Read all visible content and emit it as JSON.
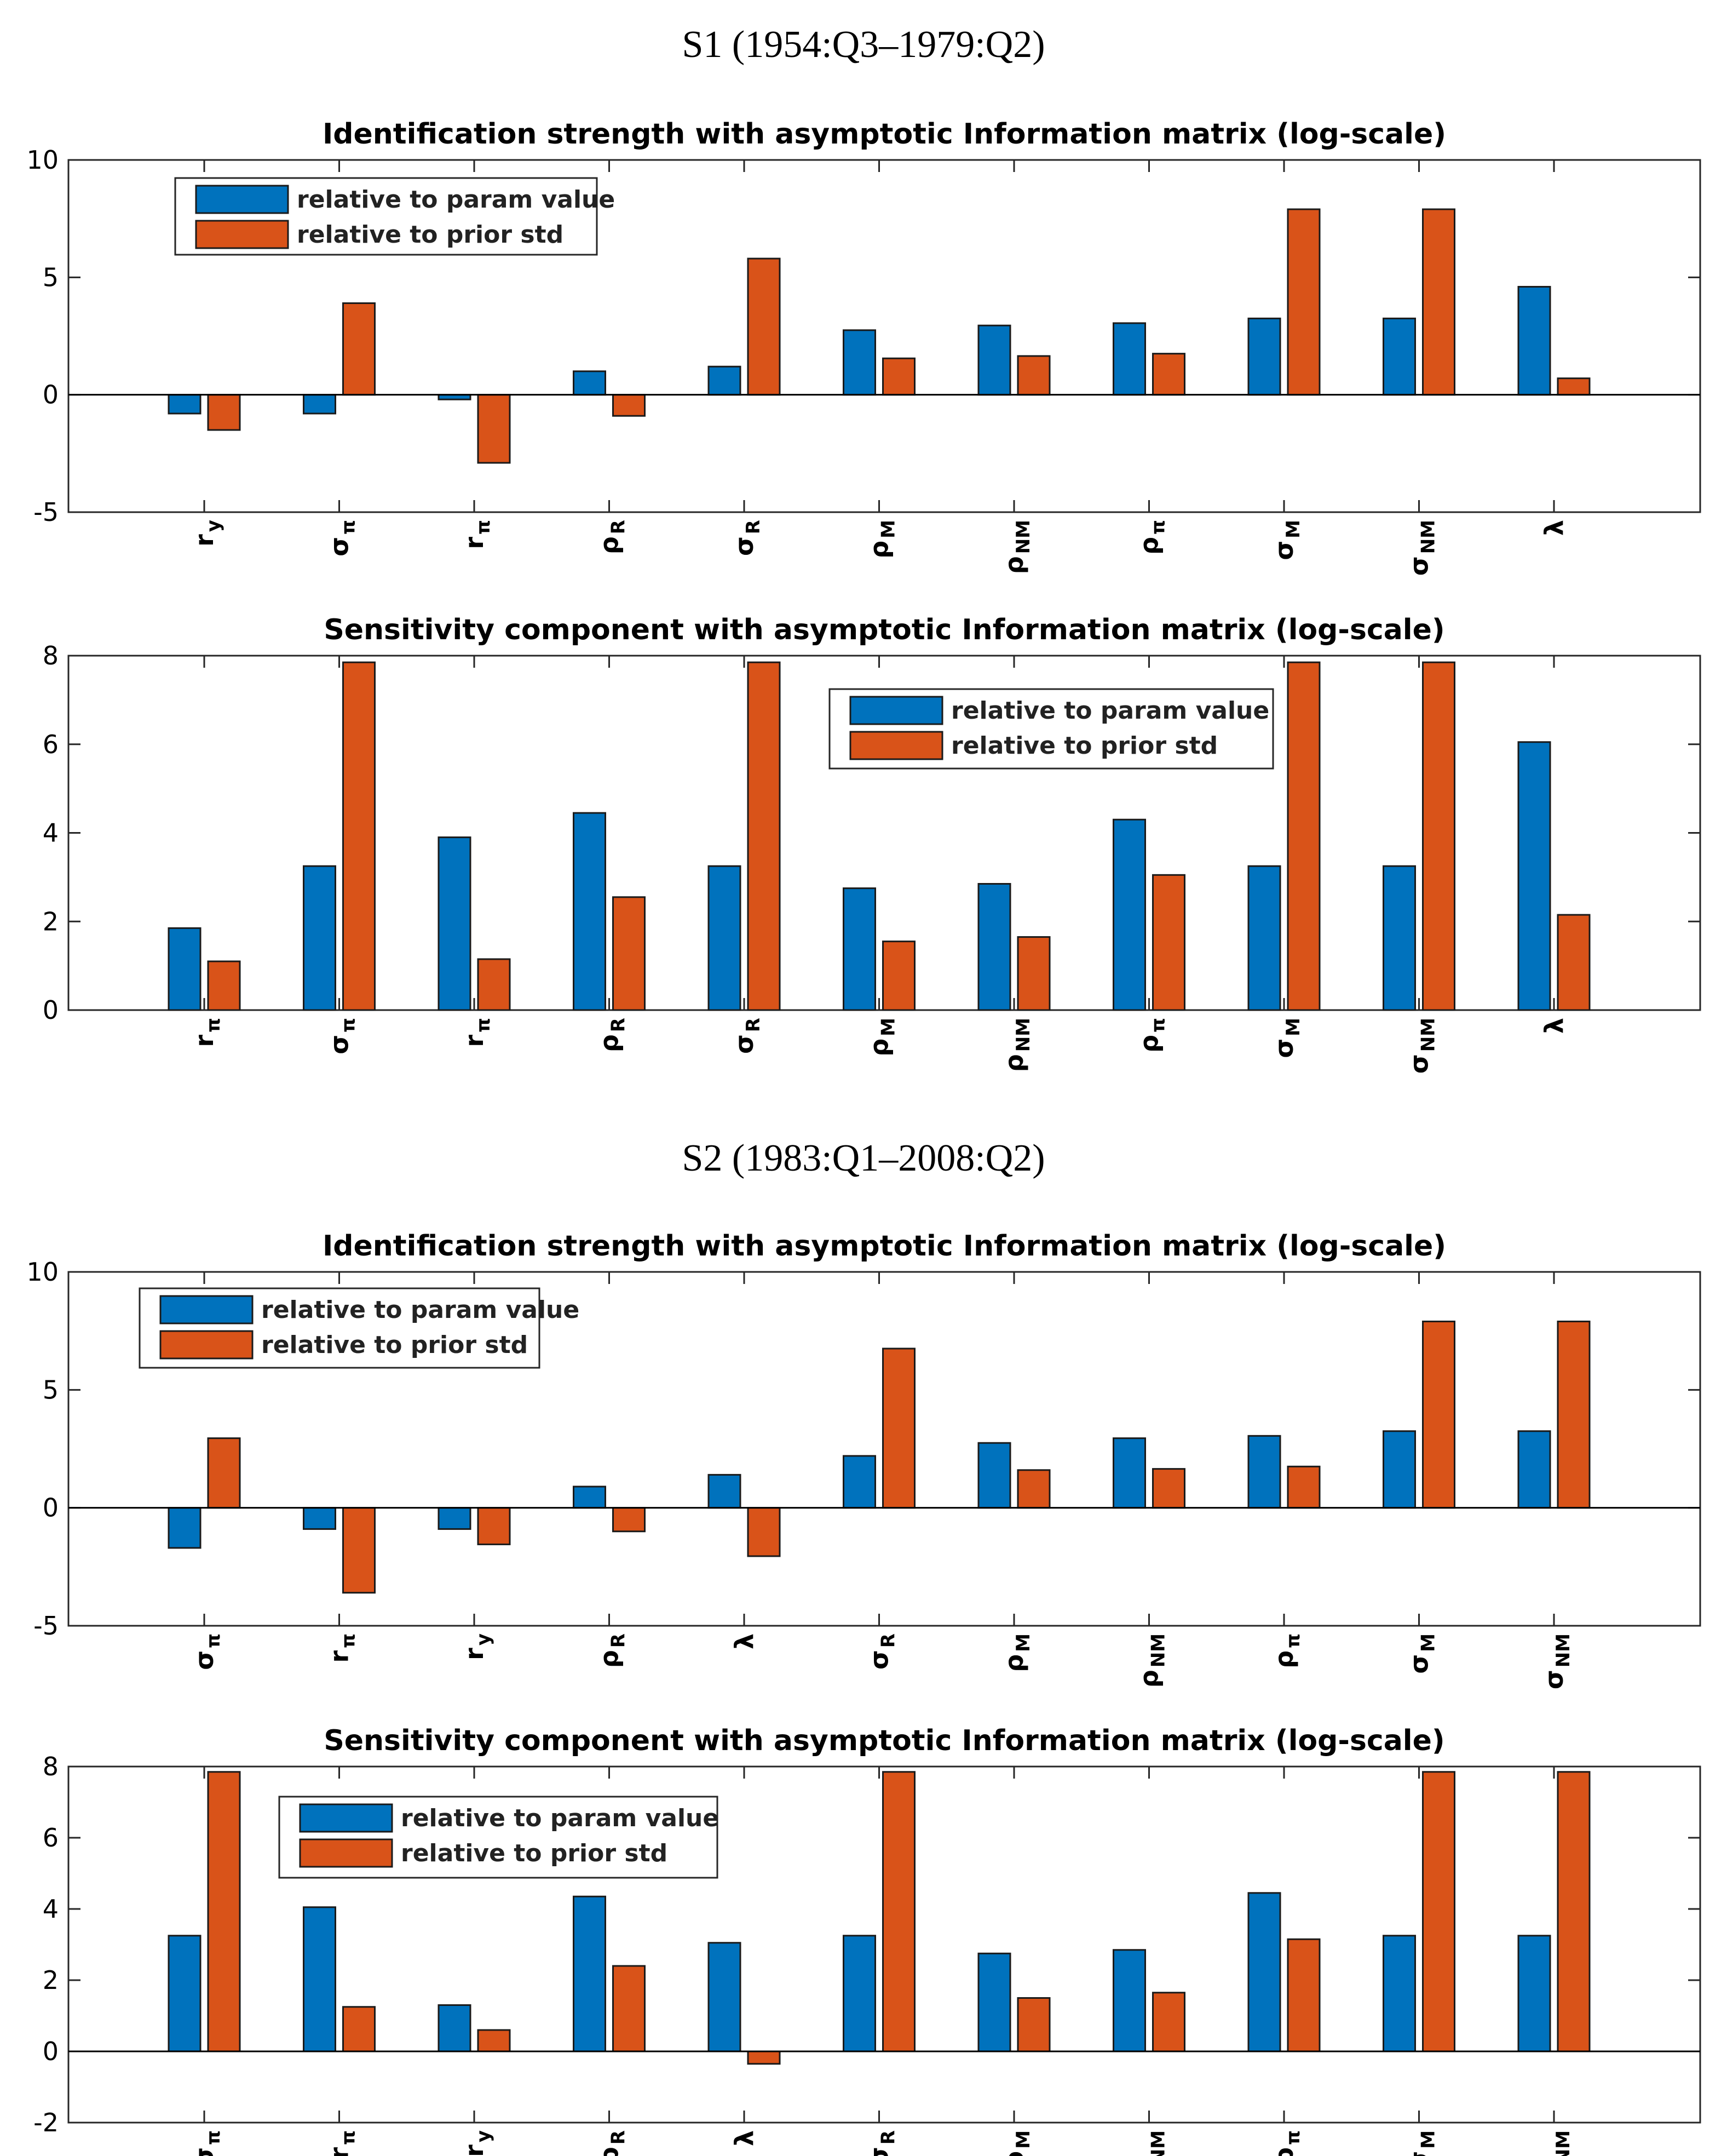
{
  "sections": [
    {
      "label": "S1 (1954:Q3–1979:Q2)"
    },
    {
      "label": "S2 (1983:Q1–2008:Q2)"
    }
  ],
  "colors": {
    "series1": "#0072BD",
    "series2": "#D95319"
  },
  "chart_data": [
    {
      "type": "bar",
      "title": "Identification strength with asymptotic Information matrix (log-scale)",
      "legend_position": "top-left",
      "ylim": [
        -5,
        10
      ],
      "yticks": [
        -5,
        0,
        5,
        10
      ],
      "categories": [
        {
          "base": "r",
          "sub": "y"
        },
        {
          "base": "σ",
          "sub": "π"
        },
        {
          "base": "r",
          "sub": "π"
        },
        {
          "base": "ρ",
          "sub": "R"
        },
        {
          "base": "σ",
          "sub": "R"
        },
        {
          "base": "ρ",
          "sub": "M"
        },
        {
          "base": "ρ",
          "sub": "NM"
        },
        {
          "base": "ρ",
          "sub": "π"
        },
        {
          "base": "σ",
          "sub": "M"
        },
        {
          "base": "σ",
          "sub": "NM"
        },
        {
          "base": "λ",
          "sub": ""
        }
      ],
      "series": [
        {
          "name": "relative to param value",
          "values": [
            -0.8,
            -0.8,
            -0.2,
            1.0,
            1.2,
            2.75,
            2.95,
            3.05,
            3.25,
            3.25,
            4.6
          ]
        },
        {
          "name": "relative to prior std",
          "values": [
            -1.5,
            3.9,
            -2.9,
            -0.9,
            5.8,
            1.55,
            1.65,
            1.75,
            7.9,
            7.9,
            0.7
          ]
        }
      ]
    },
    {
      "type": "bar",
      "title": "Sensitivity component with asymptotic Information matrix (log-scale)",
      "legend_position": "top-right",
      "ylim": [
        0,
        8
      ],
      "yticks": [
        0,
        2,
        4,
        6,
        8
      ],
      "categories": [
        {
          "base": "r",
          "sub": "π"
        },
        {
          "base": "σ",
          "sub": "π"
        },
        {
          "base": "r",
          "sub": "π"
        },
        {
          "base": "ρ",
          "sub": "R"
        },
        {
          "base": "σ",
          "sub": "R"
        },
        {
          "base": "ρ",
          "sub": "M"
        },
        {
          "base": "ρ",
          "sub": "NM"
        },
        {
          "base": "ρ",
          "sub": "π"
        },
        {
          "base": "σ",
          "sub": "M"
        },
        {
          "base": "σ",
          "sub": "NM"
        },
        {
          "base": "λ",
          "sub": ""
        }
      ],
      "series": [
        {
          "name": "relative to param value",
          "values": [
            1.85,
            3.25,
            3.9,
            4.45,
            3.25,
            2.75,
            2.85,
            4.3,
            3.25,
            3.25,
            6.05
          ]
        },
        {
          "name": "relative to prior std",
          "values": [
            1.1,
            7.85,
            1.15,
            2.55,
            7.85,
            1.55,
            1.65,
            3.05,
            7.85,
            7.85,
            2.15
          ]
        }
      ]
    },
    {
      "type": "bar",
      "title": "Identification strength with asymptotic Information matrix (log-scale)",
      "legend_position": "top-left",
      "ylim": [
        -5,
        10
      ],
      "yticks": [
        -5,
        0,
        5,
        10
      ],
      "categories": [
        {
          "base": "σ",
          "sub": "π"
        },
        {
          "base": "r",
          "sub": "π"
        },
        {
          "base": "r",
          "sub": "y"
        },
        {
          "base": "ρ",
          "sub": "R"
        },
        {
          "base": "λ",
          "sub": ""
        },
        {
          "base": "σ",
          "sub": "R"
        },
        {
          "base": "ρ",
          "sub": "M"
        },
        {
          "base": "ρ",
          "sub": "NM"
        },
        {
          "base": "ρ",
          "sub": "π"
        },
        {
          "base": "σ",
          "sub": "M"
        },
        {
          "base": "σ",
          "sub": "NM"
        }
      ],
      "series": [
        {
          "name": "relative to param value",
          "values": [
            -1.7,
            -0.9,
            -0.9,
            0.9,
            1.4,
            2.2,
            2.75,
            2.95,
            3.05,
            3.25,
            3.25
          ]
        },
        {
          "name": "relative to prior std",
          "values": [
            2.95,
            -3.6,
            -1.55,
            -1.0,
            -2.05,
            6.75,
            1.6,
            1.65,
            1.75,
            7.9,
            7.9
          ]
        }
      ]
    },
    {
      "type": "bar",
      "title": "Sensitivity component with asymptotic Information matrix (log-scale)",
      "legend_position": "top-left",
      "ylim": [
        -2,
        8
      ],
      "yticks": [
        -2,
        0,
        2,
        4,
        6,
        8
      ],
      "categories": [
        {
          "base": "σ",
          "sub": "π"
        },
        {
          "base": "r",
          "sub": "π"
        },
        {
          "base": "r",
          "sub": "y"
        },
        {
          "base": "ρ",
          "sub": "R"
        },
        {
          "base": "λ",
          "sub": ""
        },
        {
          "base": "σ",
          "sub": "R"
        },
        {
          "base": "ρ",
          "sub": "M"
        },
        {
          "base": "ρ",
          "sub": "NM"
        },
        {
          "base": "ρ",
          "sub": "π"
        },
        {
          "base": "σ",
          "sub": "M"
        },
        {
          "base": "σ",
          "sub": "NM"
        }
      ],
      "series": [
        {
          "name": "relative to param value",
          "values": [
            3.25,
            4.05,
            1.3,
            4.35,
            3.05,
            3.25,
            2.75,
            2.85,
            4.45,
            3.25,
            3.25
          ]
        },
        {
          "name": "relative to prior std",
          "values": [
            7.85,
            1.25,
            0.6,
            2.4,
            -0.35,
            7.85,
            1.5,
            1.65,
            3.15,
            7.85,
            7.85
          ]
        }
      ]
    }
  ]
}
